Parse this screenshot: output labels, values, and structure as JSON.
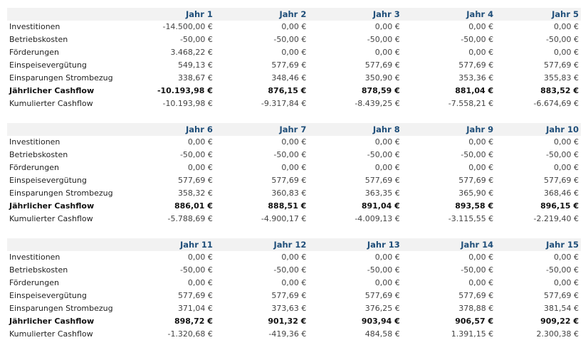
{
  "row_labels": [
    "Investitionen",
    "Betriebskosten",
    "Förderungen",
    "Einspeisevergütung",
    "Einsparungen Strombezug",
    "Jährlicher Cashflow",
    "Kumulierter Cashflow"
  ],
  "blocks": [
    {
      "years": [
        "Jahr 1",
        "Jahr 2",
        "Jahr 3",
        "Jahr 4",
        "Jahr 5"
      ],
      "rows": [
        [
          "-14.500,00 €",
          "0,00 €",
          "0,00 €",
          "0,00 €",
          "0,00 €"
        ],
        [
          "-50,00 €",
          "-50,00 €",
          "-50,00 €",
          "-50,00 €",
          "-50,00 €"
        ],
        [
          "3.468,22 €",
          "0,00 €",
          "0,00 €",
          "0,00 €",
          "0,00 €"
        ],
        [
          "549,13 €",
          "577,69 €",
          "577,69 €",
          "577,69 €",
          "577,69 €"
        ],
        [
          "338,67 €",
          "348,46 €",
          "350,90 €",
          "353,36 €",
          "355,83 €"
        ],
        [
          "-10.193,98 €",
          "876,15 €",
          "878,59 €",
          "881,04 €",
          "883,52 €"
        ],
        [
          "-10.193,98 €",
          "-9.317,84 €",
          "-8.439,25 €",
          "-7.558,21 €",
          "-6.674,69 €"
        ]
      ]
    },
    {
      "years": [
        "Jahr 6",
        "Jahr 7",
        "Jahr 8",
        "Jahr 9",
        "Jahr 10"
      ],
      "rows": [
        [
          "0,00 €",
          "0,00 €",
          "0,00 €",
          "0,00 €",
          "0,00 €"
        ],
        [
          "-50,00 €",
          "-50,00 €",
          "-50,00 €",
          "-50,00 €",
          "-50,00 €"
        ],
        [
          "0,00 €",
          "0,00 €",
          "0,00 €",
          "0,00 €",
          "0,00 €"
        ],
        [
          "577,69 €",
          "577,69 €",
          "577,69 €",
          "577,69 €",
          "577,69 €"
        ],
        [
          "358,32 €",
          "360,83 €",
          "363,35 €",
          "365,90 €",
          "368,46 €"
        ],
        [
          "886,01 €",
          "888,51 €",
          "891,04 €",
          "893,58 €",
          "896,15 €"
        ],
        [
          "-5.788,69 €",
          "-4.900,17 €",
          "-4.009,13 €",
          "-3.115,55 €",
          "-2.219,40 €"
        ]
      ]
    },
    {
      "years": [
        "Jahr 11",
        "Jahr 12",
        "Jahr 13",
        "Jahr 14",
        "Jahr 15"
      ],
      "rows": [
        [
          "0,00 €",
          "0,00 €",
          "0,00 €",
          "0,00 €",
          "0,00 €"
        ],
        [
          "-50,00 €",
          "-50,00 €",
          "-50,00 €",
          "-50,00 €",
          "-50,00 €"
        ],
        [
          "0,00 €",
          "0,00 €",
          "0,00 €",
          "0,00 €",
          "0,00 €"
        ],
        [
          "577,69 €",
          "577,69 €",
          "577,69 €",
          "577,69 €",
          "577,69 €"
        ],
        [
          "371,04 €",
          "373,63 €",
          "376,25 €",
          "378,88 €",
          "381,54 €"
        ],
        [
          "898,72 €",
          "901,32 €",
          "903,94 €",
          "906,57 €",
          "909,22 €"
        ],
        [
          "-1.320,68 €",
          "-419,36 €",
          "484,58 €",
          "1.391,15 €",
          "2.300,38 €"
        ]
      ]
    }
  ]
}
